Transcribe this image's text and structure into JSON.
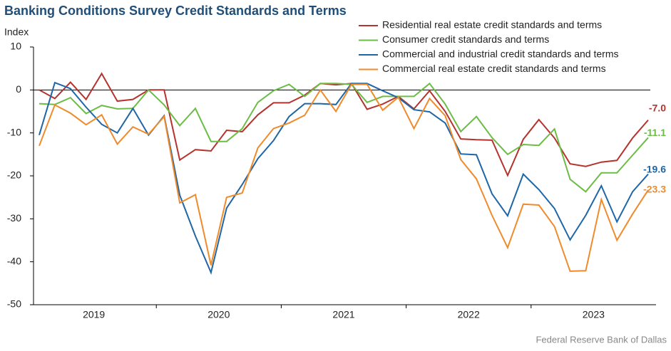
{
  "chart_data": {
    "type": "line",
    "title": "Banking Conditions Survey Credit Standards and Terms",
    "y_label": "Index",
    "source": "Federal Reserve Bank of Dallas",
    "categories": [
      null,
      null,
      null,
      null,
      null,
      null,
      null,
      null,
      null,
      null,
      null,
      null,
      null,
      null,
      null,
      null,
      null,
      null,
      null,
      null,
      null,
      null,
      null,
      null,
      null,
      null,
      null,
      null,
      null,
      null,
      null,
      null,
      null,
      null,
      null,
      null,
      null,
      null,
      null,
      null
    ],
    "year_labels": [
      "2019",
      "2020",
      "2021",
      "2022",
      "2023"
    ],
    "ylim": [
      -50,
      10
    ],
    "yticks": [
      10,
      0,
      -10,
      -20,
      -30,
      -40,
      -50
    ],
    "legend": "top-right",
    "series": [
      {
        "name": "Residential real estate credit standards and terms",
        "color": "#b5332e",
        "values": [
          0,
          -2,
          1.8,
          -2.2,
          3.8,
          -2.6,
          -2.2,
          0,
          0,
          -16.3,
          -13.9,
          -14.2,
          -9.4,
          -9.7,
          -5.8,
          -3,
          -3,
          -1.2,
          1.5,
          1.2,
          1.5,
          -4.5,
          -3.3,
          -1.5,
          -4.4,
          -0.2,
          -5,
          -11.4,
          -11.6,
          -11.7,
          -19.9,
          -11.5,
          -6.9,
          -11.2,
          -17.2,
          -17.8,
          -16.8,
          -16.4,
          -11.2,
          -7.0
        ],
        "value_labels": [
          null,
          null,
          null,
          null,
          null,
          null,
          null,
          null,
          null,
          null,
          null,
          null,
          null,
          null,
          null,
          null,
          null,
          null,
          null,
          null,
          null,
          null,
          null,
          null,
          null,
          null,
          null,
          null,
          null,
          null,
          null,
          null,
          null,
          null,
          null,
          null,
          null,
          null,
          null,
          "-7.0"
        ]
      },
      {
        "name": "Consumer credit standards and terms",
        "color": "#6bbd45",
        "values": [
          -3.2,
          -3.4,
          -1.8,
          -5.5,
          -3.6,
          -4.4,
          -4.3,
          0,
          -3.5,
          -8.3,
          -4.3,
          -12,
          -12,
          -9,
          -2.9,
          -0.2,
          1.3,
          -1.5,
          1.5,
          1.5,
          1.3,
          -2.9,
          -1.5,
          -1.5,
          -1.5,
          1.5,
          -3.3,
          -9.7,
          -6.2,
          -11.1,
          -15,
          -12.7,
          -12.9,
          -9.1,
          -20.8,
          -23.7,
          -19.3,
          -19.3,
          -15.2,
          -11.1
        ],
        "value_labels": [
          null,
          null,
          null,
          null,
          null,
          null,
          null,
          null,
          null,
          null,
          null,
          null,
          null,
          null,
          null,
          null,
          null,
          null,
          null,
          null,
          null,
          null,
          null,
          null,
          null,
          null,
          null,
          null,
          null,
          null,
          null,
          null,
          null,
          null,
          null,
          null,
          null,
          null,
          null,
          "-11.1"
        ]
      },
      {
        "name": "Commercial and industrial credit standards and terms",
        "color": "#1f66a6",
        "values": [
          -10.5,
          1.7,
          0.3,
          -4,
          -8,
          -10,
          -4.3,
          -10.5,
          -6,
          -24.5,
          -34,
          -42.5,
          -27.5,
          -22,
          -16,
          -11.8,
          -6.2,
          -3.2,
          -3.2,
          -3.4,
          1.5,
          1.5,
          -0.2,
          -1.8,
          -4.6,
          -5.1,
          -7.7,
          -14.9,
          -15.1,
          -24.2,
          -29.3,
          -19.6,
          -23.2,
          -27.6,
          -34.9,
          -29.2,
          -22.3,
          -30.7,
          -23.7,
          -19.6
        ],
        "value_labels": [
          null,
          null,
          null,
          null,
          null,
          null,
          null,
          null,
          null,
          null,
          null,
          null,
          null,
          null,
          null,
          null,
          null,
          null,
          null,
          null,
          null,
          null,
          null,
          null,
          null,
          null,
          null,
          null,
          null,
          null,
          null,
          null,
          null,
          null,
          null,
          null,
          null,
          null,
          null,
          "-19.6"
        ]
      },
      {
        "name": "Commercial real estate credit standards and terms",
        "color": "#f08a2a",
        "values": [
          -13,
          -3.5,
          -5.4,
          -8.1,
          -5.8,
          -12.6,
          -8.6,
          -10.3,
          -6.2,
          -26.3,
          -24.4,
          -40.8,
          -25,
          -24,
          -13.5,
          -9,
          -7.7,
          -5.9,
          0,
          -5,
          1.3,
          1.3,
          -4.7,
          -1.7,
          -9,
          -2,
          -6,
          -16.2,
          -20.7,
          -29.2,
          -36.7,
          -26.6,
          -26.8,
          -31.8,
          -42.2,
          -42.1,
          -25.5,
          -35,
          -28.9,
          -23.3
        ],
        "value_labels": [
          null,
          null,
          null,
          null,
          null,
          null,
          null,
          null,
          null,
          null,
          null,
          null,
          null,
          null,
          null,
          null,
          null,
          null,
          null,
          null,
          null,
          null,
          null,
          null,
          null,
          null,
          null,
          null,
          null,
          null,
          null,
          null,
          null,
          null,
          null,
          null,
          null,
          null,
          null,
          "-23.3"
        ]
      }
    ]
  }
}
